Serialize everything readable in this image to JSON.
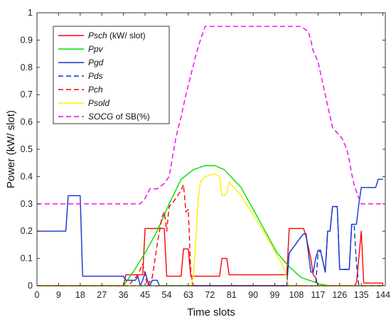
{
  "chart_data": {
    "type": "line",
    "xlabel": "Time slots",
    "ylabel": "Power (kW/ slot)",
    "xlim": [
      0,
      145
    ],
    "ylim": [
      0,
      1
    ],
    "xticks": [
      0,
      9,
      18,
      27,
      36,
      45,
      54,
      63,
      72,
      81,
      90,
      99,
      108,
      117,
      126,
      135,
      144
    ],
    "yticks": [
      0,
      0.1,
      0.2,
      0.3,
      0.4,
      0.5,
      0.6,
      0.7,
      0.8,
      0.9,
      1
    ],
    "ytick_labels": [
      "0",
      "0.1",
      "0.2",
      "0.3",
      "0.4",
      "0.5",
      "0.6",
      "0.7",
      "0.8",
      "0.9",
      "1"
    ],
    "grid": false,
    "legend_position": "top-left",
    "legend": [
      {
        "italic": "Psch",
        "rest": " (kW/ slot)"
      },
      {
        "italic": "Ppv",
        "rest": ""
      },
      {
        "italic": "Pgd",
        "rest": ""
      },
      {
        "italic": "Pds",
        "rest": ""
      },
      {
        "italic": "Pch",
        "rest": ""
      },
      {
        "italic": "Psold",
        "rest": ""
      },
      {
        "italic": "SOCG",
        "rest": " of SB(%)"
      }
    ],
    "series": [
      {
        "color": "#ff0000",
        "dash": false,
        "x": [
          0,
          36,
          37,
          44,
          45,
          53,
          54,
          60,
          61,
          63,
          64,
          76,
          77,
          79,
          80,
          104,
          105,
          111,
          112,
          114,
          115,
          116,
          117,
          132,
          133,
          135,
          136,
          144
        ],
        "y": [
          0,
          0,
          0.04,
          0.04,
          0.21,
          0.21,
          0.035,
          0.035,
          0.135,
          0.135,
          0.035,
          0.035,
          0.1,
          0.1,
          0.04,
          0.04,
          0.21,
          0.21,
          0.18,
          0.1,
          0.04,
          0.03,
          0,
          0,
          0.01,
          0.2,
          0.01,
          0.01
        ]
      },
      {
        "color": "#00dd00",
        "dash": false,
        "x": [
          0,
          36,
          40,
          45,
          50,
          55,
          60,
          65,
          70,
          74,
          78,
          85,
          90,
          95,
          100,
          105,
          110,
          115,
          118,
          122,
          144
        ],
        "y": [
          0,
          0,
          0.05,
          0.12,
          0.2,
          0.3,
          0.39,
          0.425,
          0.44,
          0.44,
          0.425,
          0.36,
          0.28,
          0.2,
          0.12,
          0.07,
          0.03,
          0.015,
          0.005,
          0,
          0
        ]
      },
      {
        "color": "#1133cc",
        "dash": false,
        "x": [
          0,
          12,
          13,
          18,
          19,
          36,
          37,
          41,
          42,
          43,
          44,
          45,
          46,
          47,
          48,
          50,
          51,
          104,
          105,
          110,
          111,
          112,
          114,
          115,
          116,
          117,
          118,
          120,
          121,
          122,
          123,
          125,
          126,
          127,
          130,
          131,
          132,
          133,
          134,
          135,
          136,
          141,
          142,
          144
        ],
        "y": [
          0.2,
          0.2,
          0.33,
          0.33,
          0.035,
          0.035,
          0.02,
          0.02,
          0.035,
          0,
          0.02,
          0.05,
          0.02,
          0,
          0.02,
          0.02,
          0,
          0,
          0.12,
          0.18,
          0.19,
          0.19,
          0.05,
          0.05,
          0.1,
          0.13,
          0.13,
          0.05,
          0.2,
          0.2,
          0.29,
          0.29,
          0.06,
          0.06,
          0.06,
          0.225,
          0.225,
          0.225,
          0.3,
          0.36,
          0.36,
          0.36,
          0.39,
          0.39
        ]
      },
      {
        "color": "#1133cc",
        "dash": true,
        "x": [
          0,
          104,
          105,
          110,
          111,
          112,
          114,
          115,
          116,
          117,
          118,
          120,
          121,
          122,
          123,
          125,
          126,
          127,
          130,
          131,
          132,
          133,
          134,
          135,
          136,
          144
        ],
        "y": [
          0,
          0,
          0,
          0,
          0,
          0,
          0,
          0,
          0,
          0.12,
          0.13,
          0.05,
          0.2,
          0.2,
          0.29,
          0.29,
          0.06,
          0.06,
          0.06,
          0.225,
          0.225,
          0.08,
          0,
          0,
          0,
          0
        ]
      },
      {
        "color": "#ff0000",
        "dash": true,
        "x": [
          0,
          38,
          40,
          42,
          44,
          45,
          46,
          48,
          50,
          52,
          53,
          54,
          55,
          57,
          60,
          61,
          62,
          63,
          64,
          65,
          144
        ],
        "y": [
          0,
          0,
          0.02,
          0.04,
          0.08,
          0.04,
          0,
          0.03,
          0.15,
          0.25,
          0.27,
          0.2,
          0.29,
          0.31,
          0.35,
          0.37,
          0.27,
          0.28,
          0.05,
          0,
          0
        ]
      },
      {
        "color": "#ffee00",
        "dash": false,
        "x": [
          0,
          64,
          65,
          66,
          67,
          68,
          70,
          72,
          74,
          76,
          77,
          78,
          79,
          80,
          85,
          90,
          95,
          100,
          103,
          104,
          105,
          144
        ],
        "y": [
          0,
          0,
          0.03,
          0.14,
          0.3,
          0.38,
          0.4,
          0.405,
          0.41,
          0.4,
          0.33,
          0.33,
          0.34,
          0.38,
          0.33,
          0.26,
          0.19,
          0.11,
          0.06,
          0.02,
          0,
          0
        ]
      },
      {
        "color": "#ee00ee",
        "dash": true,
        "x": [
          0,
          43,
          45,
          47,
          50,
          53,
          55,
          57,
          58,
          60,
          62,
          64,
          66,
          68,
          70,
          72,
          110,
          113,
          114,
          115,
          116,
          117,
          118,
          119,
          120,
          121,
          122,
          123,
          125,
          127,
          129,
          130,
          131,
          132,
          134,
          135,
          136,
          144
        ],
        "y": [
          0.3,
          0.3,
          0.32,
          0.355,
          0.355,
          0.375,
          0.4,
          0.5,
          0.55,
          0.62,
          0.7,
          0.77,
          0.84,
          0.9,
          0.95,
          0.95,
          0.95,
          0.93,
          0.9,
          0.86,
          0.84,
          0.82,
          0.78,
          0.74,
          0.7,
          0.66,
          0.62,
          0.58,
          0.56,
          0.54,
          0.5,
          0.46,
          0.41,
          0.37,
          0.32,
          0.3,
          0.3,
          0.3
        ]
      }
    ]
  }
}
